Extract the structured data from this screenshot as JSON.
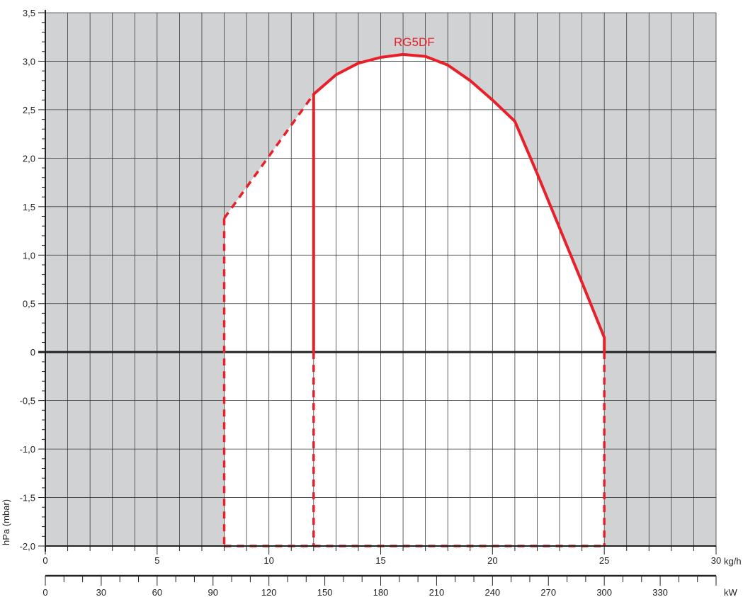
{
  "colors": {
    "background_shade": "#d1d2d4",
    "grid": "#3a3a3a",
    "zero_line": "#222222",
    "curve": "#e8202a",
    "text": "#222222"
  },
  "chart_data": {
    "type": "line",
    "title": "",
    "series_label": "RG5DF",
    "ylabel": "hPa (mbar)",
    "xunit": "kg/h",
    "x2unit": "kW",
    "xlim": [
      0,
      30
    ],
    "ylim": [
      -2.0,
      3.5
    ],
    "x2lim": [
      0,
      360
    ],
    "grid": true,
    "x_ticks": [
      {
        "value": 0,
        "label": "0"
      },
      {
        "value": 5,
        "label": "5"
      },
      {
        "value": 10,
        "label": "10"
      },
      {
        "value": 15,
        "label": "15"
      },
      {
        "value": 20,
        "label": "20"
      },
      {
        "value": 25,
        "label": "25"
      },
      {
        "value": 30,
        "label": "30"
      }
    ],
    "x2_ticks": [
      {
        "value": 0,
        "label": "0"
      },
      {
        "value": 30,
        "label": "30"
      },
      {
        "value": 60,
        "label": "60"
      },
      {
        "value": 90,
        "label": "90"
      },
      {
        "value": 120,
        "label": "120"
      },
      {
        "value": 150,
        "label": "150"
      },
      {
        "value": 180,
        "label": "180"
      },
      {
        "value": 210,
        "label": "210"
      },
      {
        "value": 240,
        "label": "240"
      },
      {
        "value": 270,
        "label": "270"
      },
      {
        "value": 300,
        "label": "300"
      },
      {
        "value": 330,
        "label": "330"
      }
    ],
    "y_ticks": [
      {
        "value": 3.5,
        "label": "3,5"
      },
      {
        "value": 3.0,
        "label": "3,0"
      },
      {
        "value": 2.5,
        "label": "2,5"
      },
      {
        "value": 2.0,
        "label": "2,0"
      },
      {
        "value": 1.5,
        "label": "1,5"
      },
      {
        "value": 1.0,
        "label": "1,0"
      },
      {
        "value": 0.5,
        "label": "0,5"
      },
      {
        "value": 0,
        "label": "0"
      },
      {
        "value": -0.5,
        "label": "-0,5"
      },
      {
        "value": -1.0,
        "label": "-1,0"
      },
      {
        "value": -1.5,
        "label": "-1,5"
      },
      {
        "value": -2.0,
        "label": "-2,0"
      }
    ],
    "working_area": [
      [
        8,
        -2.0
      ],
      [
        8,
        1.38
      ],
      [
        12,
        2.66
      ],
      [
        13,
        2.86
      ],
      [
        14,
        2.98
      ],
      [
        15,
        3.04
      ],
      [
        16,
        3.07
      ],
      [
        17,
        3.05
      ],
      [
        18,
        2.96
      ],
      [
        19,
        2.8
      ],
      [
        20,
        2.6
      ],
      [
        21,
        2.38
      ],
      [
        22,
        1.84
      ],
      [
        23,
        1.28
      ],
      [
        24,
        0.72
      ],
      [
        25,
        0.15
      ],
      [
        25,
        -2.0
      ]
    ],
    "solid_curve": [
      [
        12,
        0
      ],
      [
        12,
        2.66
      ],
      [
        13,
        2.86
      ],
      [
        14,
        2.98
      ],
      [
        15,
        3.04
      ],
      [
        16,
        3.07
      ],
      [
        17,
        3.05
      ],
      [
        18,
        2.96
      ],
      [
        19,
        2.8
      ],
      [
        20,
        2.6
      ],
      [
        21,
        2.38
      ],
      [
        22,
        1.84
      ],
      [
        23,
        1.28
      ],
      [
        24,
        0.72
      ],
      [
        25,
        0.15
      ],
      [
        25,
        0
      ]
    ],
    "dashed_segments": [
      [
        [
          8,
          1.38
        ],
        [
          12,
          2.66
        ]
      ],
      [
        [
          8,
          1.38
        ],
        [
          8,
          -2.0
        ]
      ],
      [
        [
          8,
          -2.0
        ],
        [
          25,
          -2.0
        ]
      ],
      [
        [
          12,
          0
        ],
        [
          12,
          -2.0
        ]
      ],
      [
        [
          25,
          0
        ],
        [
          25,
          -2.0
        ]
      ]
    ],
    "label_position": {
      "x": 16.5,
      "y": 3.2
    }
  }
}
